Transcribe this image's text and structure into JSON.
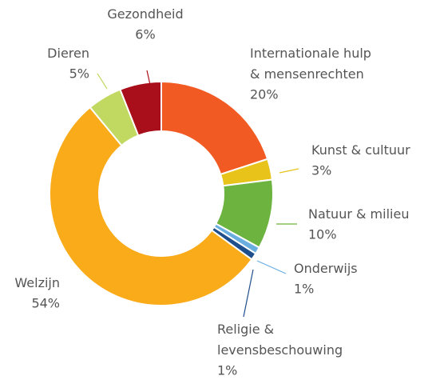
{
  "chart_data": {
    "type": "pie",
    "categories": [
      "Internationale hulp\n& mensenrechten",
      "Kunst & cultuur",
      "Natuur & milieu",
      "Onderwijs",
      "Religie &\nlevensbeschouwing",
      "Welzijn",
      "Dieren",
      "Gezondheid"
    ],
    "values": [
      20,
      3,
      10,
      1,
      1,
      54,
      5,
      6
    ],
    "value_labels": [
      "20%",
      "3%",
      "10%",
      "1%",
      "1%",
      "54%",
      "5%",
      "6%"
    ],
    "colors": [
      "#f15a22",
      "#e8c31a",
      "#6db33f",
      "#6aaee0",
      "#1f4e8c",
      "#f9ab1a",
      "#c1d961",
      "#a90f1a"
    ]
  }
}
